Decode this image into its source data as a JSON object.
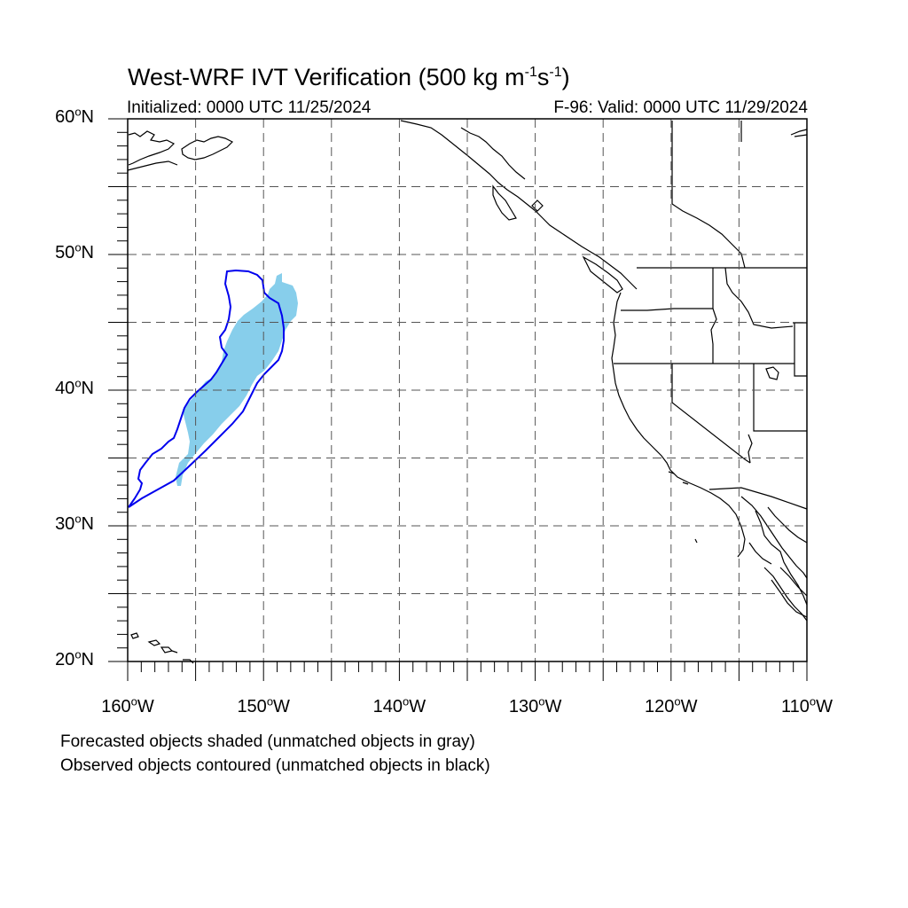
{
  "title": {
    "main": "West-WRF IVT Verification (500 kg m",
    "sup1": "-1",
    "mid": "s",
    "sup2": "-1",
    "end": ")"
  },
  "subtitle_left": "Initialized: 0000 UTC 11/25/2024",
  "subtitle_right": "F-96: Valid: 0000 UTC 11/29/2024",
  "axes": {
    "lat": [
      {
        "num": "60",
        "hemi": "N"
      },
      {
        "num": "50",
        "hemi": "N"
      },
      {
        "num": "40",
        "hemi": "N"
      },
      {
        "num": "30",
        "hemi": "N"
      },
      {
        "num": "20",
        "hemi": "N"
      }
    ],
    "lon": [
      {
        "num": "160",
        "hemi": "W"
      },
      {
        "num": "150",
        "hemi": "W"
      },
      {
        "num": "140",
        "hemi": "W"
      },
      {
        "num": "130",
        "hemi": "W"
      },
      {
        "num": "120",
        "hemi": "W"
      },
      {
        "num": "110",
        "hemi": "W"
      }
    ],
    "deg": "o"
  },
  "extent": {
    "lon_min": -160,
    "lon_max": -110,
    "lat_min": 20,
    "lat_max": 60
  },
  "colors": {
    "forecast_fill": "#87ceeb",
    "observed_contour": "#0000ee",
    "coastline": "#000000",
    "grid": "#555555"
  },
  "captions": [
    "Forecasted objects shaded (unmatched objects in gray)",
    "Observed objects contoured (unmatched objects in black)"
  ]
}
